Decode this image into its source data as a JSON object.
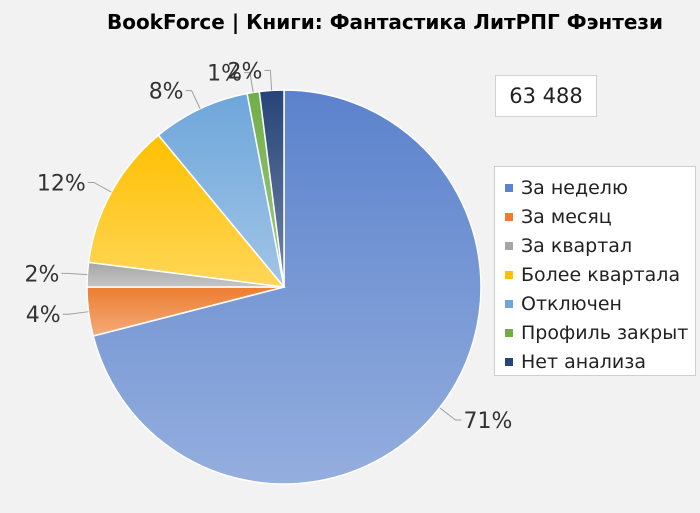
{
  "chart_data": {
    "type": "pie",
    "title": "BookForce | Книги: Фантастика ЛитРПГ Фэнтези",
    "total_label": "63 488",
    "legend_position": "right",
    "slices": [
      {
        "name": "За неделю",
        "value": 71,
        "label": "71%",
        "color": "#5b82cc"
      },
      {
        "name": "За месяц",
        "value": 4,
        "label": "4%",
        "color": "#ed7d31"
      },
      {
        "name": "За квартал",
        "value": 2,
        "label": "2%",
        "color": "#a5a5a5"
      },
      {
        "name": "Более квартала",
        "value": 12,
        "label": "12%",
        "color": "#ffc000"
      },
      {
        "name": "Отключен",
        "value": 8,
        "label": "8%",
        "color": "#6ea6da"
      },
      {
        "name": "Профиль закрыт",
        "value": 1,
        "label": "1%",
        "color": "#70ad47"
      },
      {
        "name": "Нет анализа",
        "value": 2,
        "label": "2%",
        "color": "#264478"
      }
    ]
  }
}
